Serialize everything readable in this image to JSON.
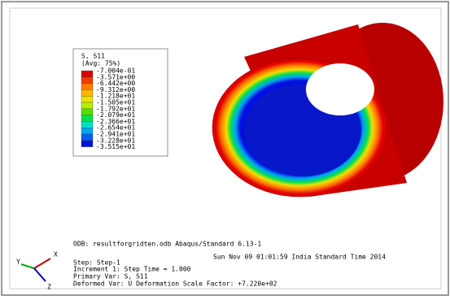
{
  "legend": {
    "title": "S, S11",
    "subtitle": "(Avg: 75%)",
    "labels": [
      "-7.004e-01",
      "-3.571e+00",
      "-6.442e+00",
      "-9.312e+00",
      "-1.218e+01",
      "-1.505e+01",
      "-1.792e+01",
      "-2.079e+01",
      "-2.366e+01",
      "-2.654e+01",
      "-2.941e+01",
      "-3.228e+01",
      "-3.515e+01"
    ],
    "colors": [
      "#e00000",
      "#f03a00",
      "#ff7a00",
      "#ffb400",
      "#f0e000",
      "#b4f000",
      "#50e000",
      "#00e050",
      "#00e0c0",
      "#00a8f0",
      "#0060f0",
      "#0010e0"
    ]
  },
  "info": {
    "odb": "ODB: resultforgridten.odb    Abaqus/Standard 6.13-1",
    "date": "Sun Nov 09 01:01:59 India Standard Time 2014",
    "step": "Step: Step-1",
    "increment": "Increment     1: Step Time =    1.000",
    "primary": "Primary Var: S, S11",
    "deformed": "Deformed Var: U   Deformation Scale Factor: +7.220e+02"
  },
  "triad": {
    "x": "X",
    "y": "Y",
    "z": "Z"
  }
}
